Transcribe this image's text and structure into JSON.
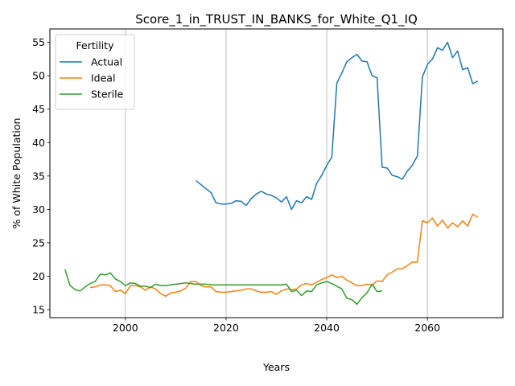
{
  "chart_data": {
    "type": "line",
    "title": "Score_1_in_TRUST_IN_BANKS_for_White_Q1_IQ",
    "xlabel": "Years",
    "ylabel": "% of White Population",
    "xlim": [
      1985,
      2075
    ],
    "ylim": [
      13.8,
      57.0
    ],
    "xticks": [
      2000,
      2020,
      2040,
      2060
    ],
    "yticks": [
      15,
      20,
      25,
      30,
      35,
      40,
      45,
      50,
      55
    ],
    "grid": "vertical",
    "legend": {
      "title": "Fertility",
      "position": "top-left",
      "entries": [
        "Actual",
        "Ideal",
        "Sterile"
      ]
    },
    "series": [
      {
        "name": "Actual",
        "color": "#1f77b4",
        "x": [
          2014,
          2015,
          2016,
          2017,
          2018,
          2019,
          2020,
          2021,
          2022,
          2023,
          2024,
          2025,
          2026,
          2027,
          2028,
          2029,
          2030,
          2031,
          2032,
          2033,
          2034,
          2035,
          2036,
          2037,
          2038,
          2039,
          2040,
          2041,
          2042,
          2043,
          2044,
          2045,
          2046,
          2047,
          2048,
          2049,
          2050,
          2051,
          2052,
          2053,
          2054,
          2055,
          2056,
          2057,
          2058,
          2059,
          2060,
          2061,
          2062,
          2063,
          2064,
          2065,
          2066,
          2067,
          2068,
          2069,
          2070
        ],
        "y": [
          34.3,
          33.7,
          33.1,
          32.5,
          31.0,
          30.8,
          30.8,
          30.9,
          31.3,
          31.2,
          30.6,
          31.6,
          32.3,
          32.7,
          32.3,
          32.1,
          31.7,
          31.1,
          31.9,
          30.0,
          31.3,
          31.0,
          31.9,
          31.5,
          33.9,
          35.1,
          36.6,
          37.8,
          48.9,
          50.4,
          52.1,
          52.7,
          53.2,
          52.2,
          52.1,
          50.0,
          49.7,
          36.3,
          36.2,
          35.1,
          34.9,
          34.5,
          35.7,
          36.6,
          38.0,
          49.8,
          51.7,
          52.5,
          54.2,
          53.8,
          55.0,
          52.7,
          53.7,
          50.9,
          51.2,
          48.8,
          49.2
        ]
      },
      {
        "name": "Ideal",
        "color": "#ff7f0e",
        "x": [
          1993,
          1994,
          1995,
          1996,
          1997,
          1998,
          1999,
          2000,
          2001,
          2002,
          2003,
          2004,
          2005,
          2006,
          2007,
          2008,
          2009,
          2010,
          2011,
          2012,
          2013,
          2014,
          2015,
          2016,
          2017,
          2018,
          2019,
          2020,
          2021,
          2022,
          2023,
          2024,
          2025,
          2026,
          2027,
          2028,
          2029,
          2030,
          2031,
          2032,
          2033,
          2034,
          2035,
          2036,
          2037,
          2038,
          2039,
          2040,
          2041,
          2042,
          2043,
          2044,
          2045,
          2046,
          2047,
          2048,
          2049,
          2050,
          2051,
          2052,
          2053,
          2054,
          2055,
          2056,
          2057,
          2058,
          2059,
          2060,
          2061,
          2062,
          2063,
          2064,
          2065,
          2066,
          2067,
          2068,
          2069,
          2070
        ],
        "y": [
          18.3,
          18.4,
          18.7,
          18.7,
          18.6,
          17.7,
          17.9,
          17.4,
          18.6,
          18.6,
          18.4,
          17.9,
          18.4,
          18.1,
          17.4,
          17.0,
          17.5,
          17.6,
          17.8,
          18.2,
          19.2,
          19.2,
          18.6,
          18.4,
          18.4,
          17.7,
          17.6,
          17.6,
          17.7,
          17.8,
          17.9,
          18.1,
          18.1,
          17.8,
          17.6,
          17.6,
          17.7,
          17.3,
          17.8,
          18.1,
          18.0,
          18.1,
          18.7,
          18.9,
          18.7,
          19.1,
          19.5,
          19.8,
          20.2,
          19.8,
          20.0,
          19.4,
          19.0,
          18.6,
          18.6,
          18.8,
          18.7,
          19.3,
          19.2,
          20.2,
          20.6,
          21.1,
          21.1,
          21.6,
          22.1,
          22.1,
          28.3,
          28.0,
          28.7,
          27.5,
          28.4,
          27.2,
          28.0,
          27.4,
          28.3,
          27.5,
          29.3,
          28.8
        ]
      },
      {
        "name": "Sterile",
        "color": "#2ca02c",
        "x": [
          1988,
          1989,
          1990,
          1991,
          1992,
          1993,
          1994,
          1995,
          1996,
          1997,
          1998,
          1999,
          2000,
          2001,
          2002,
          2003,
          2004,
          2005,
          2006,
          2007,
          2008,
          2009,
          2010,
          2011,
          2012,
          2013,
          2014,
          2015,
          2016,
          2017,
          2018,
          2019,
          2020,
          2021,
          2022,
          2023,
          2024,
          2025,
          2026,
          2027,
          2028,
          2029,
          2030,
          2031,
          2032,
          2033,
          2034,
          2035,
          2036,
          2037,
          2038,
          2039,
          2040,
          2041,
          2042,
          2043,
          2044,
          2045,
          2046,
          2047,
          2048,
          2049,
          2050,
          2051
        ],
        "y": [
          21.0,
          18.6,
          18.0,
          17.8,
          18.4,
          18.9,
          19.2,
          20.3,
          20.2,
          20.5,
          19.6,
          19.2,
          18.6,
          19.0,
          18.9,
          18.5,
          18.5,
          18.3,
          18.8,
          18.6,
          18.6,
          18.7,
          18.8,
          18.9,
          19.0,
          18.9,
          18.8,
          18.8,
          18.8,
          18.7,
          18.7,
          18.7,
          18.7,
          18.7,
          18.7,
          18.7,
          18.7,
          18.7,
          18.7,
          18.7,
          18.7,
          18.7,
          18.7,
          18.7,
          18.8,
          17.7,
          17.9,
          17.1,
          17.8,
          17.7,
          18.7,
          19.0,
          19.2,
          18.9,
          18.5,
          18.1,
          16.7,
          16.5,
          15.8,
          16.8,
          17.5,
          18.8,
          17.7,
          17.8
        ]
      }
    ]
  }
}
